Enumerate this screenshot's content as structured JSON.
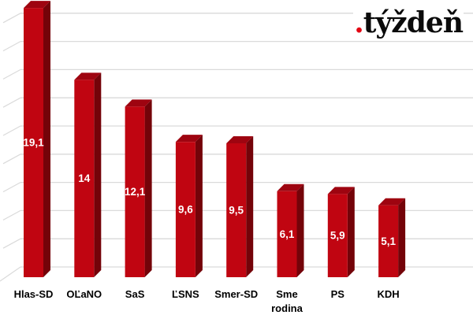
{
  "logo": {
    "dot": ".",
    "text": "týždeň",
    "dot_color": "#e30613",
    "text_color": "#0b0b0b"
  },
  "chart_data": {
    "type": "bar",
    "style": "3d-column",
    "title": "",
    "xlabel": "",
    "ylabel": "",
    "categories": [
      "Hlas-SD",
      "OĽaNO",
      "SaS",
      "ĽSNS",
      "Smer-SD",
      "Sme rodina",
      "PS",
      "KDH"
    ],
    "values": [
      19.1,
      14,
      12.1,
      9.6,
      9.5,
      6.1,
      5.9,
      5.1
    ],
    "value_labels": [
      "19,1",
      "14",
      "12,1",
      "9,6",
      "9,5",
      "6,1",
      "5,9",
      "5,1"
    ],
    "category_label_lines": [
      [
        "Hlas-SD"
      ],
      [
        "OĽaNO"
      ],
      [
        "SaS"
      ],
      [
        "ĽSNS"
      ],
      [
        "Smer-SD"
      ],
      [
        "Sme",
        "rodina"
      ],
      [
        "PS"
      ],
      [
        "KDH"
      ]
    ],
    "ylim": [
      0,
      20
    ],
    "gridline_values": [
      0,
      2,
      4,
      6,
      8,
      10,
      12,
      14,
      16,
      18
    ],
    "grid": true,
    "legend": false,
    "colors": {
      "bar_front": "#c00511",
      "bar_side": "#740309",
      "bar_top": "#9e0410",
      "value_label": "#ffffff",
      "category_label": "#000000",
      "gridline": "#dadada",
      "background": "#ffffff"
    }
  }
}
